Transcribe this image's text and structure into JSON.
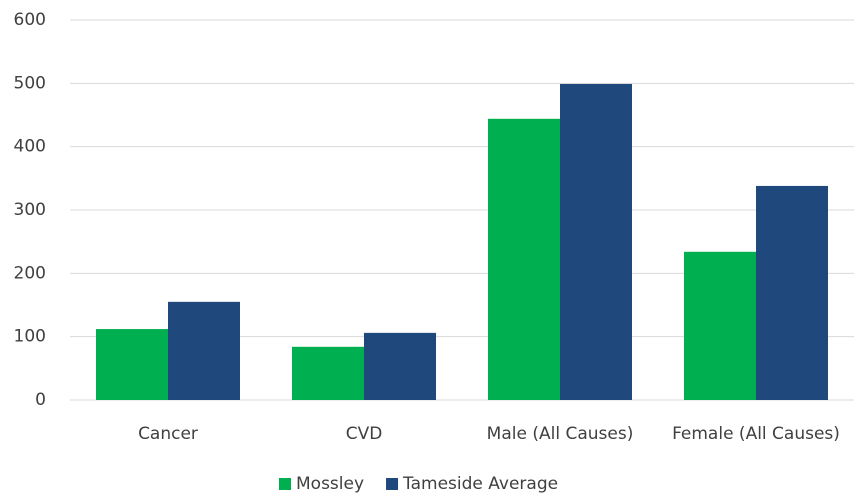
{
  "chart_data": {
    "type": "bar",
    "categories": [
      "Cancer",
      "CVD",
      "Male (All Causes)",
      "Female (All Causes)"
    ],
    "series": [
      {
        "name": "Mossley",
        "color": "#00b050",
        "values": [
          112,
          84,
          444,
          234
        ]
      },
      {
        "name": "Tameside Average",
        "color": "#1f497d",
        "values": [
          155,
          106,
          499,
          338
        ]
      }
    ],
    "ylim": [
      0,
      600
    ],
    "yticks": [
      0,
      100,
      200,
      300,
      400,
      500,
      600
    ],
    "grid": true,
    "legend": "bottom"
  }
}
